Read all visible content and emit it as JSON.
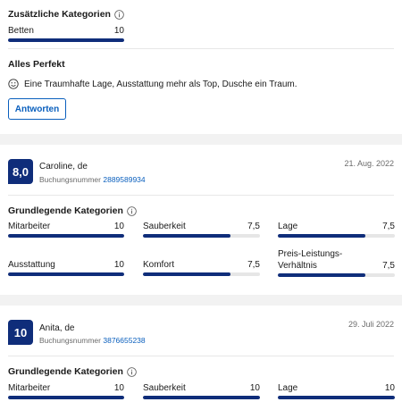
{
  "top": {
    "extra_categories_title": "Zusätzliche Kategorien",
    "beds": {
      "label": "Betten",
      "value": "10",
      "fill": 1.0
    },
    "review_title": "Alles Perfekt",
    "review_text": "Eine Traumhafte Lage, Ausstattung mehr als Top, Dusche ein Traum.",
    "reply_label": "Antworten"
  },
  "reviews": [
    {
      "score": "8,0",
      "name": "Caroline, de",
      "booking_label": "Buchungsnummer",
      "booking_number": "2889589934",
      "date": "21. Aug. 2022",
      "categories_title": "Grundlegende Kategorien",
      "metrics": [
        {
          "label": "Mitarbeiter",
          "value": "10",
          "fill": 1.0
        },
        {
          "label": "Sauberkeit",
          "value": "7,5",
          "fill": 0.75
        },
        {
          "label": "Lage",
          "value": "7,5",
          "fill": 0.75
        },
        {
          "label": "Ausstattung",
          "value": "10",
          "fill": 1.0
        },
        {
          "label": "Komfort",
          "value": "7,5",
          "fill": 0.75
        },
        {
          "label": "Preis-Leistungs-Verhältnis",
          "label_line1": "Preis-Leistungs-",
          "label_line2": "Verhältnis",
          "value": "7,5",
          "fill": 0.75
        }
      ]
    },
    {
      "score": "10",
      "name": "Anita, de",
      "booking_label": "Buchungsnummer",
      "booking_number": "3876655238",
      "date": "29. Juli 2022",
      "categories_title": "Grundlegende Kategorien",
      "metrics": [
        {
          "label": "Mitarbeiter",
          "value": "10",
          "fill": 1.0
        },
        {
          "label": "Sauberkeit",
          "value": "10",
          "fill": 1.0
        },
        {
          "label": "Lage",
          "value": "10",
          "fill": 1.0
        }
      ]
    }
  ],
  "colors": {
    "accent": "#0f2d7a",
    "link": "#0a5fbd",
    "track": "#e6e6e6",
    "band": "#f2f2f2"
  }
}
